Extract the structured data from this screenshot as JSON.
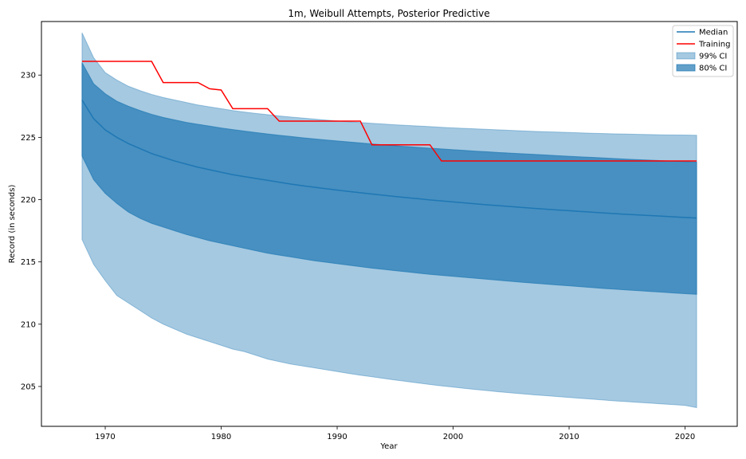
{
  "chart_data": {
    "type": "area",
    "title": "1m, Weibull Attempts, Posterior Predictive",
    "xlabel": "Year",
    "ylabel": "Record (in seconds)",
    "xlim": [
      1964.5,
      2024.5
    ],
    "ylim": [
      201.8,
      234.3
    ],
    "xticks": [
      1970,
      1980,
      1990,
      2000,
      2010,
      2020
    ],
    "yticks": [
      205,
      210,
      215,
      220,
      225,
      230
    ],
    "grid": false,
    "legend_position": "top-right",
    "colors": {
      "median": "#1f77b4",
      "training": "#ff0000",
      "ci99": "#1f77b4",
      "ci80": "#1f77b4"
    },
    "legend": [
      {
        "key": "median",
        "label": "Median",
        "kind": "line"
      },
      {
        "key": "training",
        "label": "Training",
        "kind": "line"
      },
      {
        "key": "ci99",
        "label": "99% CI",
        "kind": "patch"
      },
      {
        "key": "ci80",
        "label": "80% CI",
        "kind": "patch"
      }
    ],
    "years": [
      1968,
      1969,
      1970,
      1971,
      1972,
      1973,
      1974,
      1975,
      1976,
      1977,
      1978,
      1979,
      1980,
      1981,
      1982,
      1983,
      1984,
      1985,
      1986,
      1987,
      1988,
      1989,
      1990,
      1991,
      1992,
      1993,
      1994,
      1995,
      1996,
      1997,
      1998,
      1999,
      2000,
      2001,
      2002,
      2003,
      2004,
      2005,
      2006,
      2007,
      2008,
      2009,
      2010,
      2011,
      2012,
      2013,
      2014,
      2015,
      2016,
      2017,
      2018,
      2019,
      2020,
      2021
    ],
    "series": [
      {
        "key": "median",
        "name": "Median",
        "values": [
          228.0,
          226.5,
          225.6,
          225.0,
          224.5,
          224.1,
          223.7,
          223.4,
          223.1,
          222.85,
          222.6,
          222.4,
          222.2,
          222.0,
          221.85,
          221.7,
          221.55,
          221.4,
          221.25,
          221.12,
          221.0,
          220.88,
          220.77,
          220.66,
          220.55,
          220.45,
          220.35,
          220.25,
          220.16,
          220.07,
          219.98,
          219.9,
          219.82,
          219.74,
          219.66,
          219.58,
          219.51,
          219.44,
          219.37,
          219.3,
          219.23,
          219.17,
          219.11,
          219.05,
          218.99,
          218.93,
          218.87,
          218.82,
          218.77,
          218.72,
          218.67,
          218.62,
          218.57,
          218.52
        ]
      },
      {
        "key": "ci80",
        "name": "80% CI",
        "lower": [
          223.5,
          221.6,
          220.5,
          219.7,
          219.0,
          218.5,
          218.1,
          217.8,
          217.5,
          217.2,
          216.95,
          216.7,
          216.5,
          216.3,
          216.1,
          215.9,
          215.7,
          215.55,
          215.4,
          215.25,
          215.1,
          214.98,
          214.86,
          214.74,
          214.62,
          214.5,
          214.4,
          214.3,
          214.2,
          214.1,
          214.0,
          213.92,
          213.84,
          213.76,
          213.68,
          213.6,
          213.52,
          213.44,
          213.36,
          213.29,
          213.22,
          213.15,
          213.08,
          213.01,
          212.94,
          212.87,
          212.81,
          212.75,
          212.69,
          212.63,
          212.57,
          212.51,
          212.45,
          212.4
        ],
        "upper": [
          231.0,
          229.3,
          228.5,
          227.9,
          227.5,
          227.15,
          226.85,
          226.6,
          226.4,
          226.2,
          226.05,
          225.9,
          225.75,
          225.62,
          225.5,
          225.38,
          225.27,
          225.17,
          225.07,
          224.97,
          224.88,
          224.79,
          224.71,
          224.63,
          224.55,
          224.47,
          224.4,
          224.33,
          224.26,
          224.19,
          224.13,
          224.07,
          224.01,
          223.95,
          223.89,
          223.84,
          223.78,
          223.73,
          223.68,
          223.63,
          223.58,
          223.53,
          223.48,
          223.43,
          223.39,
          223.34,
          223.3,
          223.25,
          223.21,
          223.17,
          223.13,
          223.09,
          223.05,
          223.01
        ]
      },
      {
        "key": "ci99",
        "name": "99% CI",
        "lower": [
          216.8,
          214.8,
          213.5,
          212.3,
          211.7,
          211.1,
          210.5,
          210.0,
          209.6,
          209.2,
          208.9,
          208.6,
          208.3,
          208.0,
          207.8,
          207.5,
          207.2,
          207.0,
          206.8,
          206.65,
          206.5,
          206.35,
          206.2,
          206.05,
          205.9,
          205.78,
          205.65,
          205.52,
          205.4,
          205.28,
          205.16,
          205.05,
          204.95,
          204.85,
          204.75,
          204.66,
          204.57,
          204.49,
          204.41,
          204.33,
          204.26,
          204.19,
          204.12,
          204.05,
          203.98,
          203.91,
          203.84,
          203.78,
          203.72,
          203.66,
          203.6,
          203.54,
          203.48,
          203.3
        ],
        "upper": [
          233.4,
          231.4,
          230.2,
          229.6,
          229.1,
          228.75,
          228.45,
          228.2,
          228.0,
          227.8,
          227.6,
          227.45,
          227.3,
          227.15,
          227.03,
          226.92,
          226.82,
          226.72,
          226.63,
          226.55,
          226.47,
          226.39,
          226.32,
          226.25,
          226.19,
          226.13,
          226.07,
          226.01,
          225.96,
          225.91,
          225.86,
          225.81,
          225.76,
          225.72,
          225.68,
          225.64,
          225.6,
          225.56,
          225.52,
          225.48,
          225.45,
          225.42,
          225.39,
          225.36,
          225.33,
          225.3,
          225.28,
          225.26,
          225.24,
          225.22,
          225.2,
          225.19,
          225.18,
          225.17
        ]
      },
      {
        "key": "training",
        "name": "Training",
        "step_points": [
          [
            1968,
            231.1
          ],
          [
            1974,
            231.1
          ],
          [
            1975,
            229.4
          ],
          [
            1978,
            229.4
          ],
          [
            1979,
            228.9
          ],
          [
            1980,
            228.8
          ],
          [
            1981,
            227.3
          ],
          [
            1984,
            227.3
          ],
          [
            1985,
            226.3
          ],
          [
            1992,
            226.3
          ],
          [
            1993,
            224.4
          ],
          [
            1998,
            224.4
          ],
          [
            1999,
            223.1
          ],
          [
            2021,
            223.1
          ]
        ]
      }
    ]
  }
}
